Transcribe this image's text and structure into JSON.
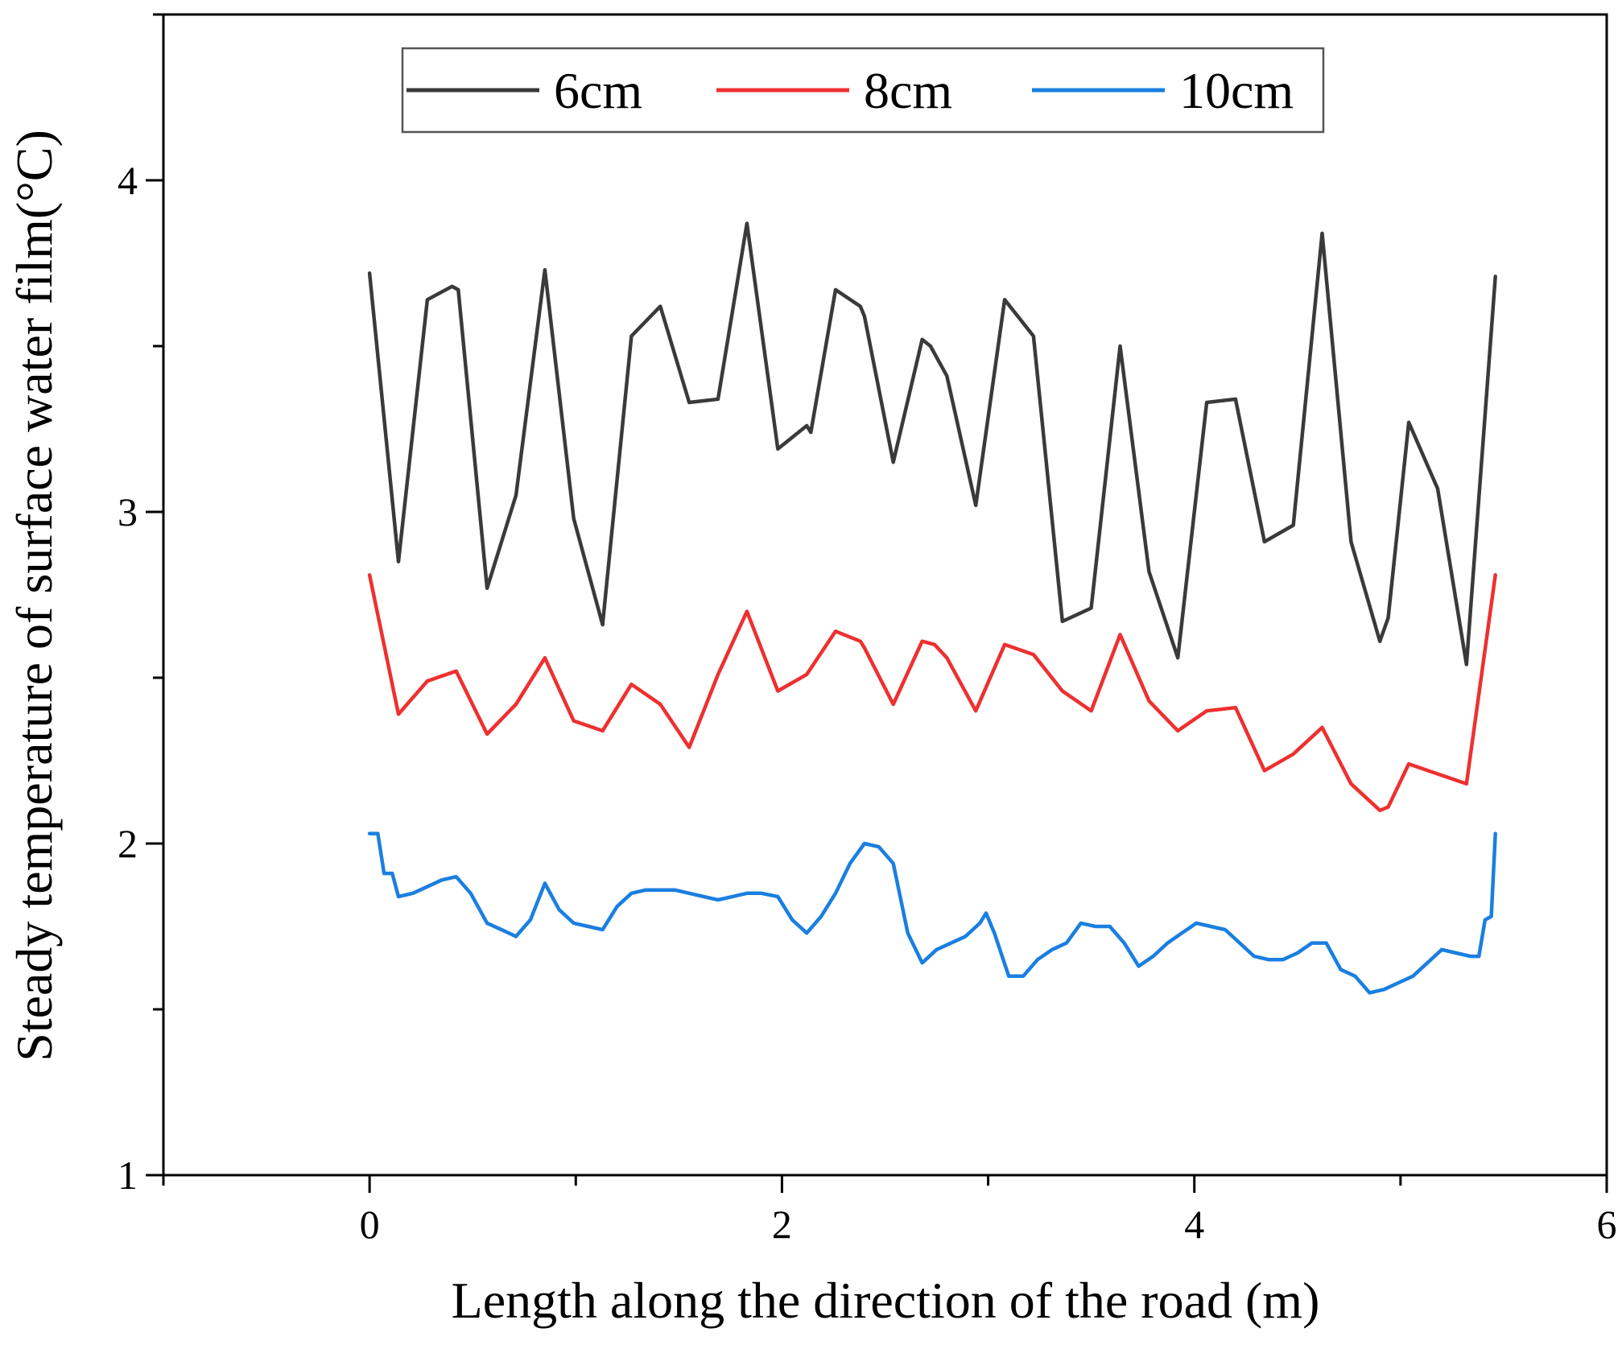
{
  "chart_data": {
    "type": "line",
    "title": "",
    "xlabel": "Length along the direction of the road (m)",
    "ylabel": "Steady temperature of surface water film(°C)",
    "xlim": [
      -1,
      6
    ],
    "ylim": [
      1,
      4.5
    ],
    "xticks": [
      0,
      2,
      4,
      6
    ],
    "xtick_labels": [
      "0",
      "2",
      "4",
      "6"
    ],
    "yticks": [
      1,
      2,
      3,
      4
    ],
    "ytick_labels": [
      "1",
      "2",
      "3",
      "4"
    ],
    "grid": false,
    "legend_position": "top-center",
    "series": [
      {
        "name": "6cm",
        "color": "#3a3a3a",
        "x": [
          0.0,
          0.14,
          0.28,
          0.4,
          0.43,
          0.57,
          0.71,
          0.85,
          0.99,
          1.13,
          1.27,
          1.41,
          1.55,
          1.69,
          1.83,
          1.98,
          2.12,
          2.14,
          2.26,
          2.38,
          2.4,
          2.54,
          2.68,
          2.72,
          2.8,
          2.94,
          3.08,
          3.22,
          3.36,
          3.5,
          3.64,
          3.78,
          3.92,
          4.06,
          4.2,
          4.34,
          4.48,
          4.62,
          4.76,
          4.9,
          4.94,
          5.04,
          5.18,
          5.32,
          5.46
        ],
        "y": [
          3.72,
          2.85,
          3.64,
          3.68,
          3.67,
          2.77,
          3.05,
          3.73,
          2.98,
          2.66,
          3.53,
          3.62,
          3.33,
          3.34,
          3.87,
          3.19,
          3.26,
          3.24,
          3.67,
          3.62,
          3.59,
          3.15,
          3.52,
          3.5,
          3.41,
          3.02,
          3.64,
          3.53,
          2.67,
          2.71,
          3.5,
          2.82,
          2.56,
          3.33,
          3.34,
          2.91,
          2.96,
          3.84,
          2.91,
          2.61,
          2.68,
          3.27,
          3.07,
          2.54,
          3.71
        ]
      },
      {
        "name": "8cm",
        "color": "#ee3030",
        "x": [
          0.0,
          0.14,
          0.28,
          0.42,
          0.57,
          0.71,
          0.85,
          0.99,
          1.13,
          1.27,
          1.41,
          1.55,
          1.69,
          1.83,
          1.98,
          2.12,
          2.26,
          2.38,
          2.4,
          2.54,
          2.68,
          2.74,
          2.8,
          2.94,
          3.08,
          3.22,
          3.36,
          3.5,
          3.64,
          3.78,
          3.92,
          4.06,
          4.2,
          4.34,
          4.48,
          4.62,
          4.76,
          4.9,
          4.94,
          5.04,
          5.18,
          5.32,
          5.46
        ],
        "y": [
          2.81,
          2.39,
          2.49,
          2.52,
          2.33,
          2.42,
          2.56,
          2.37,
          2.34,
          2.48,
          2.42,
          2.29,
          2.51,
          2.7,
          2.46,
          2.51,
          2.64,
          2.61,
          2.59,
          2.42,
          2.61,
          2.6,
          2.56,
          2.4,
          2.6,
          2.57,
          2.46,
          2.4,
          2.63,
          2.43,
          2.34,
          2.4,
          2.41,
          2.22,
          2.27,
          2.35,
          2.18,
          2.1,
          2.11,
          2.24,
          2.21,
          2.18,
          2.81
        ]
      },
      {
        "name": "10cm",
        "color": "#1a7fe0",
        "x": [
          0.0,
          0.04,
          0.07,
          0.11,
          0.14,
          0.21,
          0.28,
          0.35,
          0.42,
          0.49,
          0.57,
          0.64,
          0.71,
          0.78,
          0.85,
          0.92,
          0.99,
          1.06,
          1.13,
          1.2,
          1.27,
          1.34,
          1.41,
          1.48,
          1.55,
          1.62,
          1.69,
          1.76,
          1.83,
          1.9,
          1.98,
          2.05,
          2.12,
          2.19,
          2.26,
          2.33,
          2.4,
          2.47,
          2.54,
          2.61,
          2.68,
          2.75,
          2.82,
          2.89,
          2.96,
          2.99,
          3.03,
          3.1,
          3.17,
          3.24,
          3.31,
          3.38,
          3.45,
          3.52,
          3.59,
          3.66,
          3.73,
          3.8,
          3.87,
          3.94,
          4.01,
          4.08,
          4.15,
          4.22,
          4.29,
          4.36,
          4.43,
          4.5,
          4.57,
          4.64,
          4.71,
          4.78,
          4.85,
          4.92,
          4.99,
          5.06,
          5.13,
          5.2,
          5.27,
          5.34,
          5.38,
          5.41,
          5.44,
          5.46
        ],
        "y": [
          2.03,
          2.03,
          1.91,
          1.91,
          1.84,
          1.85,
          1.87,
          1.89,
          1.9,
          1.85,
          1.76,
          1.74,
          1.72,
          1.77,
          1.88,
          1.8,
          1.76,
          1.75,
          1.74,
          1.81,
          1.85,
          1.86,
          1.86,
          1.86,
          1.85,
          1.84,
          1.83,
          1.84,
          1.85,
          1.85,
          1.84,
          1.77,
          1.73,
          1.78,
          1.85,
          1.94,
          2.0,
          1.99,
          1.94,
          1.73,
          1.64,
          1.68,
          1.7,
          1.72,
          1.76,
          1.79,
          1.73,
          1.6,
          1.6,
          1.65,
          1.68,
          1.7,
          1.76,
          1.75,
          1.75,
          1.7,
          1.63,
          1.66,
          1.7,
          1.73,
          1.76,
          1.75,
          1.74,
          1.7,
          1.66,
          1.65,
          1.65,
          1.67,
          1.7,
          1.7,
          1.62,
          1.6,
          1.55,
          1.56,
          1.58,
          1.6,
          1.64,
          1.68,
          1.67,
          1.66,
          1.66,
          1.77,
          1.78,
          2.03
        ]
      }
    ]
  }
}
